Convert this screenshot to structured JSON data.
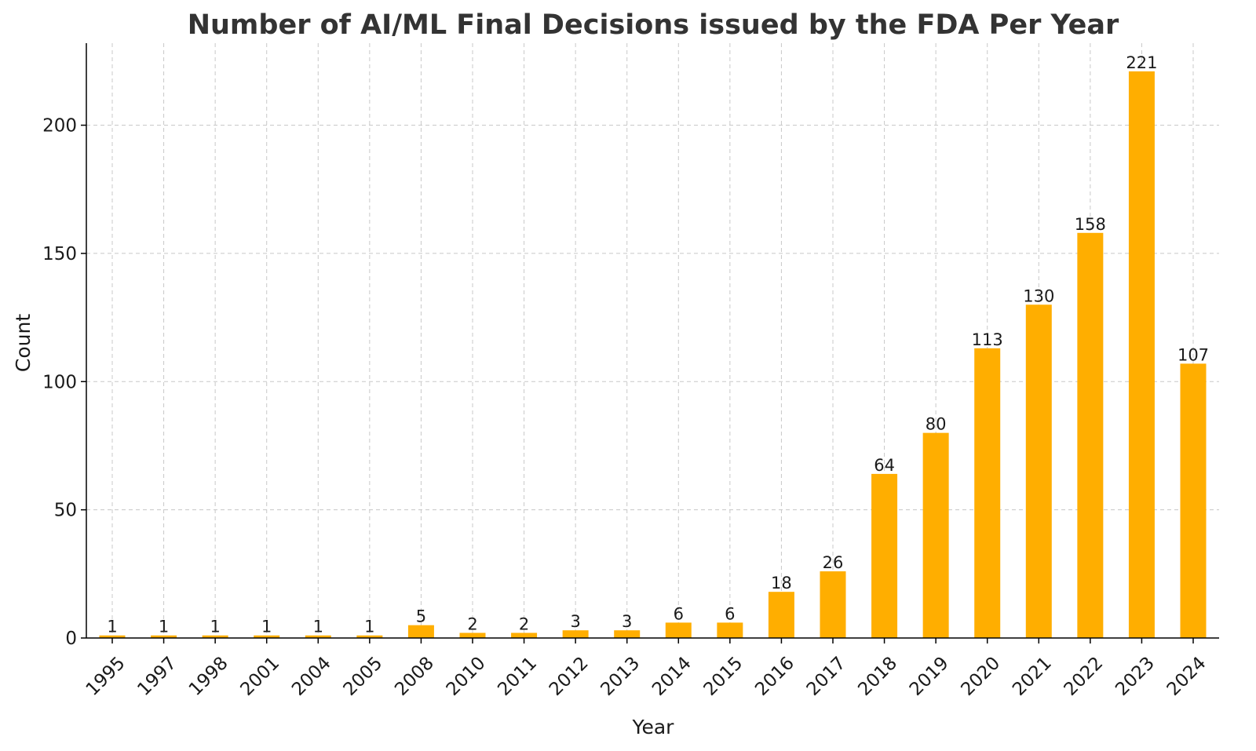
{
  "chart_data": {
    "type": "bar",
    "title": "Number of AI/ML Final Decisions issued by the FDA Per Year",
    "xlabel": "Year",
    "ylabel": "Count",
    "categories": [
      "1995",
      "1997",
      "1998",
      "2001",
      "2004",
      "2005",
      "2008",
      "2010",
      "2011",
      "2012",
      "2013",
      "2014",
      "2015",
      "2016",
      "2017",
      "2018",
      "2019",
      "2020",
      "2021",
      "2022",
      "2023",
      "2024"
    ],
    "values": [
      1,
      1,
      1,
      1,
      1,
      1,
      5,
      2,
      2,
      3,
      3,
      6,
      6,
      18,
      26,
      64,
      80,
      113,
      130,
      158,
      221,
      107
    ],
    "ylim": [
      0,
      232
    ],
    "yticks": [
      0,
      50,
      100,
      150,
      200
    ],
    "grid": true,
    "data_labels": true,
    "bar_color": "#FFAE00"
  }
}
